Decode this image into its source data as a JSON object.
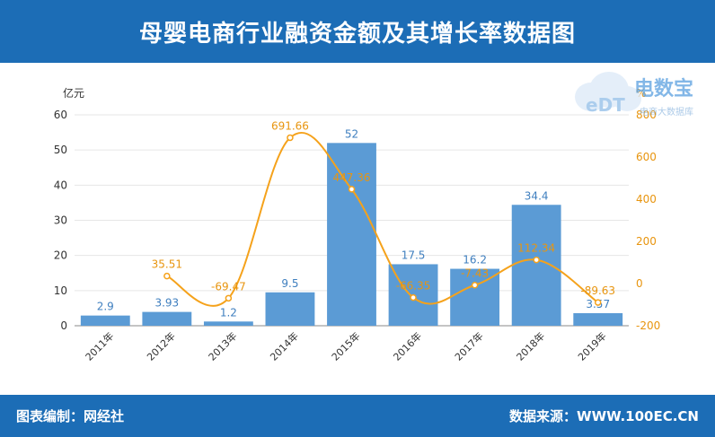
{
  "header": {
    "title": "母婴电商行业融资金额及其增长率数据图"
  },
  "footer": {
    "editor": "图表编制：网经社",
    "source": "数据来源：WWW.100EC.CN"
  },
  "watermark": {
    "brand": "电数宝",
    "sub": "电商大数据库",
    "icon_text": "eDT"
  },
  "colors": {
    "header_bg": "#1c6db6",
    "bar": "#5b9bd5",
    "line": "#f5a21b",
    "bar_label": "#3f7fbf",
    "line_label": "#e8950f"
  },
  "chart_data": {
    "type": "bar",
    "title": "母婴电商行业融资金额及其增长率数据图",
    "categories": [
      "2011年",
      "2012年",
      "2013年",
      "2014年",
      "2015年",
      "2016年",
      "2017年",
      "2018年",
      "2019年"
    ],
    "series": [
      {
        "type": "bar",
        "axis": "left",
        "values": [
          2.9,
          3.93,
          1.2,
          9.5,
          52,
          17.5,
          16.2,
          34.4,
          3.57
        ],
        "labels": [
          "2.9",
          "3.93",
          "1.2",
          "9.5",
          "52",
          "17.5",
          "16.2",
          "34.4",
          "3.57"
        ]
      },
      {
        "type": "line",
        "axis": "right",
        "values": [
          null,
          35.51,
          -69.47,
          691.66,
          447.36,
          -66.35,
          -7.43,
          112.34,
          -89.63
        ],
        "labels": [
          "",
          "35.51",
          "-69.47",
          "691.66",
          "447.36",
          "-66.35",
          "-7.43",
          "112.34",
          "-89.63"
        ]
      }
    ],
    "ylabel_left": "亿元",
    "ylabel_right": "%",
    "ylim_left": [
      0,
      60
    ],
    "ylim_right": [
      -200,
      800
    ],
    "yticks_left": [
      "0",
      "10",
      "20",
      "30",
      "40",
      "50",
      "60"
    ],
    "yticks_right": [
      "-200",
      "0",
      "200",
      "400",
      "600",
      "800"
    ],
    "grid": true,
    "legend": "none"
  }
}
